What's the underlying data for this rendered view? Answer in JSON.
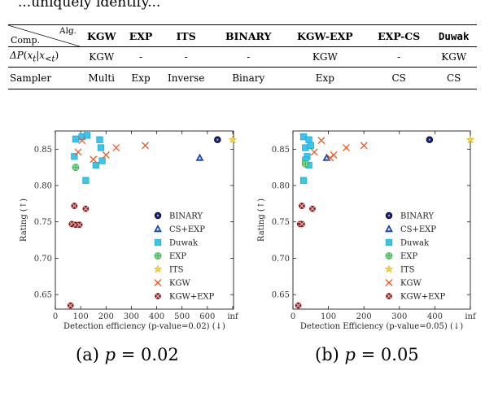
{
  "top_fragment": "...uniquely identify...",
  "table": {
    "corner_alg": "Alg.",
    "corner_comp": "Comp.",
    "headers": [
      "KGW",
      "EXP",
      "ITS",
      "BINARY",
      "KGW-EXP",
      "EXP-CS",
      "Duwak"
    ],
    "rows": [
      {
        "label": "ΔP(x_t|x_<t)",
        "cells": [
          "KGW",
          "-",
          "-",
          "-",
          "KGW",
          "-",
          "KGW"
        ]
      },
      {
        "label": "Sampler",
        "cells": [
          "Multi",
          "Exp",
          "Inverse",
          "Binary",
          "Exp",
          "CS",
          "CS"
        ]
      }
    ]
  },
  "colors": {
    "BINARY": "#1a237e",
    "CS+EXP": "#1e5bd6",
    "Duwak": "#38c6ee",
    "EXP": "#7ee08a",
    "ITS": "#f5d33a",
    "KGW": "#f05a22",
    "KGW+EXP": "#8b1e1e"
  },
  "captions": [
    {
      "prefix": "(a) ",
      "variable": "p",
      "value": " = 0.02"
    },
    {
      "prefix": "(b) ",
      "variable": "p",
      "value": " = 0.05"
    }
  ],
  "chart_data": [
    {
      "type": "scatter",
      "title": "",
      "xlabel": "Detection efficiency (p-value=0.02) (↓)",
      "ylabel": "Rating (↑)",
      "xlim": [
        0,
        700
      ],
      "ylim": [
        0.63,
        0.875
      ],
      "xticks": [
        "0",
        "100",
        "200",
        "300",
        "400",
        "500",
        "600",
        "inf"
      ],
      "yticks": [
        0.65,
        0.7,
        0.75,
        0.8,
        0.85
      ],
      "legend_position": "lower-right",
      "grid": false,
      "legend": [
        "BINARY",
        "CS+EXP",
        "Duwak",
        "EXP",
        "ITS",
        "KGW",
        "KGW+EXP"
      ],
      "series": [
        {
          "name": "BINARY",
          "points": [
            [
              640,
              0.863
            ]
          ]
        },
        {
          "name": "CS+EXP",
          "points": [
            [
              570,
              0.838
            ]
          ]
        },
        {
          "name": "Duwak",
          "points": [
            [
              80,
              0.864
            ],
            [
              105,
              0.867
            ],
            [
              125,
              0.869
            ],
            [
              175,
              0.863
            ],
            [
              180,
              0.852
            ],
            [
              75,
              0.84
            ],
            [
              185,
              0.834
            ],
            [
              160,
              0.828
            ],
            [
              120,
              0.807
            ]
          ]
        },
        {
          "name": "EXP",
          "points": [
            [
              80,
              0.825
            ]
          ]
        },
        {
          "name": "ITS",
          "points": [
            "inf",
            0.863
          ]
        },
        {
          "name": "KGW",
          "points": [
            [
              105,
              0.862
            ],
            [
              90,
              0.846
            ],
            [
              240,
              0.852
            ],
            [
              355,
              0.855
            ],
            [
              200,
              0.842
            ],
            [
              150,
              0.836
            ]
          ]
        },
        {
          "name": "KGW+EXP",
          "points": [
            [
              75,
              0.772
            ],
            [
              120,
              0.768
            ],
            [
              65,
              0.747
            ],
            [
              80,
              0.746
            ],
            [
              95,
              0.746
            ],
            [
              60,
              0.635
            ]
          ]
        }
      ]
    },
    {
      "type": "scatter",
      "title": "",
      "xlabel": "Detection Efficiency (p-value=0.05) (↓)",
      "ylabel": "Rating (↑)",
      "xlim": [
        0,
        500
      ],
      "ylim": [
        0.63,
        0.875
      ],
      "xticks": [
        "0",
        "100",
        "200",
        "300",
        "400",
        "inf"
      ],
      "yticks": [
        0.65,
        0.7,
        0.75,
        0.8,
        0.85
      ],
      "legend_position": "lower-right",
      "grid": false,
      "legend": [
        "BINARY",
        "CS+EXP",
        "Duwak",
        "EXP",
        "ITS",
        "KGW",
        "KGW+EXP"
      ],
      "series": [
        {
          "name": "BINARY",
          "points": [
            [
              385,
              0.863
            ]
          ]
        },
        {
          "name": "CS+EXP",
          "points": [
            [
              95,
              0.838
            ]
          ]
        },
        {
          "name": "Duwak",
          "points": [
            [
              30,
              0.867
            ],
            [
              45,
              0.863
            ],
            [
              35,
              0.852
            ],
            [
              50,
              0.855
            ],
            [
              40,
              0.84
            ],
            [
              35,
              0.835
            ],
            [
              45,
              0.828
            ],
            [
              30,
              0.807
            ]
          ]
        },
        {
          "name": "EXP",
          "points": [
            [
              35,
              0.83
            ]
          ]
        },
        {
          "name": "ITS",
          "points": [
            [
              "inf",
              0.863
            ]
          ]
        },
        {
          "name": "KGW",
          "points": [
            [
              80,
              0.862
            ],
            [
              60,
              0.846
            ],
            [
              150,
              0.852
            ],
            [
              200,
              0.855
            ],
            [
              105,
              0.838
            ],
            [
              115,
              0.842
            ]
          ]
        },
        {
          "name": "KGW+EXP",
          "points": [
            [
              25,
              0.772
            ],
            [
              55,
              0.768
            ],
            [
              20,
              0.747
            ],
            [
              25,
              0.747
            ],
            [
              15,
              0.635
            ]
          ]
        }
      ]
    }
  ]
}
